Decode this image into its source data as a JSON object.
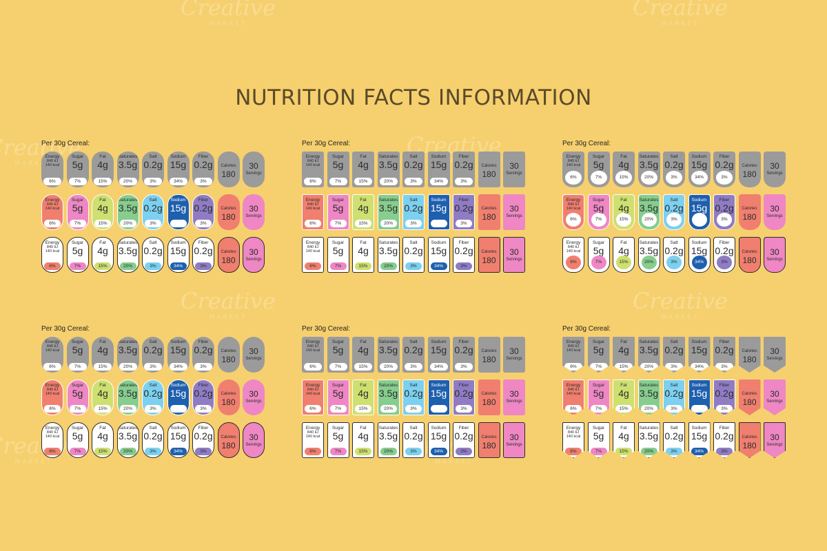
{
  "title": "NUTRITION FACTS INFORMATION",
  "watermark": {
    "brand": "Creative",
    "sub": "MARKET"
  },
  "panel_label": "Per 30g Cereal:",
  "nutrients": [
    {
      "key": "energy",
      "name": "Energy",
      "line1": "840 kJ",
      "line2": "140 kcal",
      "pct": "6%",
      "color": "#f07f6f"
    },
    {
      "key": "sugar",
      "name": "Sugar",
      "value": "5g",
      "pct": "7%",
      "color": "#ee87c4"
    },
    {
      "key": "fat",
      "name": "Fat",
      "value": "4g",
      "pct": "15%",
      "color": "#cde070"
    },
    {
      "key": "saturates",
      "name": "Saturates",
      "value": "3.5g",
      "pct": "20%",
      "color": "#86cd8e"
    },
    {
      "key": "salt",
      "name": "Salt",
      "value": "0.2g",
      "pct": "3%",
      "color": "#7cd0f0"
    },
    {
      "key": "sodium",
      "name": "Sodium",
      "value": "15g",
      "pct": "34%",
      "color": "#1e5fae"
    },
    {
      "key": "fiber",
      "name": "Fiber",
      "value": "0.2g",
      "pct": "3%",
      "color": "#8f7cc4"
    }
  ],
  "calories": {
    "name": "Calories",
    "value": "180",
    "color": "#f07f6f"
  },
  "servings": {
    "value": "30",
    "name": "Servings",
    "color": "#ee87c4"
  },
  "colors": {
    "gray": "#9b9b9b",
    "white": "#ffffff",
    "background": "#f6d06e"
  },
  "panels": [
    {
      "id": "panel-1",
      "shape": "rounded"
    },
    {
      "id": "panel-2",
      "shape": "square"
    },
    {
      "id": "panel-3",
      "shape": "circle"
    },
    {
      "id": "panel-4",
      "shape": "pill"
    },
    {
      "id": "panel-5",
      "shape": "square"
    },
    {
      "id": "panel-6",
      "shape": "arrow"
    }
  ],
  "row_styles": [
    "gray",
    "color",
    "white"
  ]
}
